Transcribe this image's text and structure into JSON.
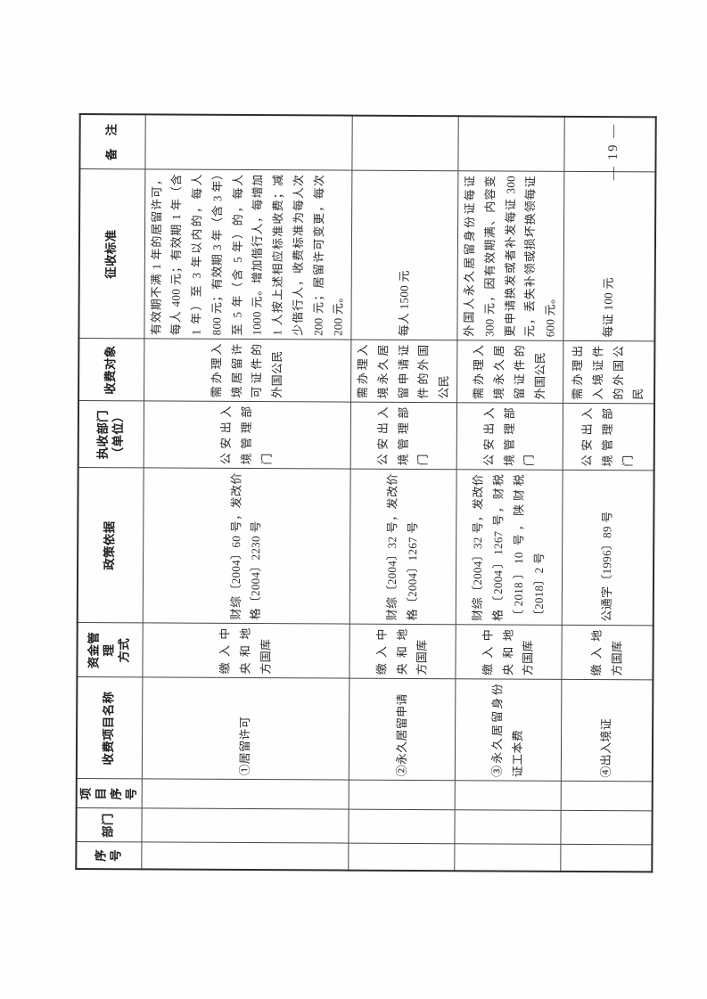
{
  "page_number": "— 19 —",
  "table": {
    "headers": [
      "序号",
      "部门",
      "项目\n序号",
      "收费项目名称",
      "资金管理\n方式",
      "政策依据",
      "执收部门\n（单位）",
      "收费对象",
      "征收标准",
      "备　注"
    ],
    "rows": [
      {
        "serial": "",
        "department": "",
        "item_no": "",
        "item_name": "①居留许可",
        "fund_management": "缴入中央和地方国库",
        "policy_basis": "财综〔2004〕60 号，发改价格〔2004〕2230 号",
        "collecting_department": "公安出入境管理部门",
        "fee_payer": "需办理入境居留许可证件的外国公民",
        "fee_standard": "有效期不满 1 年的居留许可，每人 400 元；有效期 1 年（含 1 年）至 3 年以内的，每人 800 元；有效期 3 年（含 3 年）至 5 年（含 5 年）的，每人 1000 元。增加偕行人，每增加 1 人按上述相应标准收费；减少偕行人，收费标准为每人次 200 元；居留许可变更，每次 200 元。",
        "remarks": ""
      },
      {
        "serial": "",
        "department": "",
        "item_no": "",
        "item_name": "②永久居留申请",
        "fund_management": "缴入中央和地方国库",
        "policy_basis": "财综〔2004〕32 号，发改价格〔2004〕1267 号",
        "collecting_department": "公安出入境管理部门",
        "fee_payer": "需办理入境永久居留申请证件的外国公民",
        "fee_standard": "每人 1500 元",
        "remarks": ""
      },
      {
        "serial": "",
        "department": "",
        "item_no": "",
        "item_name": "③永久居留身份证工本费",
        "fund_management": "缴入中央和地方国库",
        "policy_basis": "财综〔2004〕32 号，发改价格〔2004〕1267 号，财税〔2018〕10 号，陕财税〔2018〕2 号",
        "collecting_department": "公安出入境管理部门",
        "fee_payer": "需办理入境永久居留证件的外国公民",
        "fee_standard": "外国人永久居留身份证每证 300 元，因有效期满、内容变更申请换发或者补发每证 300 元，丢失补领或损坏换领每证 600 元。",
        "remarks": ""
      },
      {
        "serial": "",
        "department": "",
        "item_no": "",
        "item_name": "④出入境证",
        "fund_management": "缴入地方国库",
        "policy_basis": "公通字〔1996〕89 号",
        "collecting_department": "公安出入境管理部门",
        "fee_payer": "需办理出入境证件的外国公民",
        "fee_standard": "每证 100 元",
        "remarks": ""
      }
    ]
  }
}
